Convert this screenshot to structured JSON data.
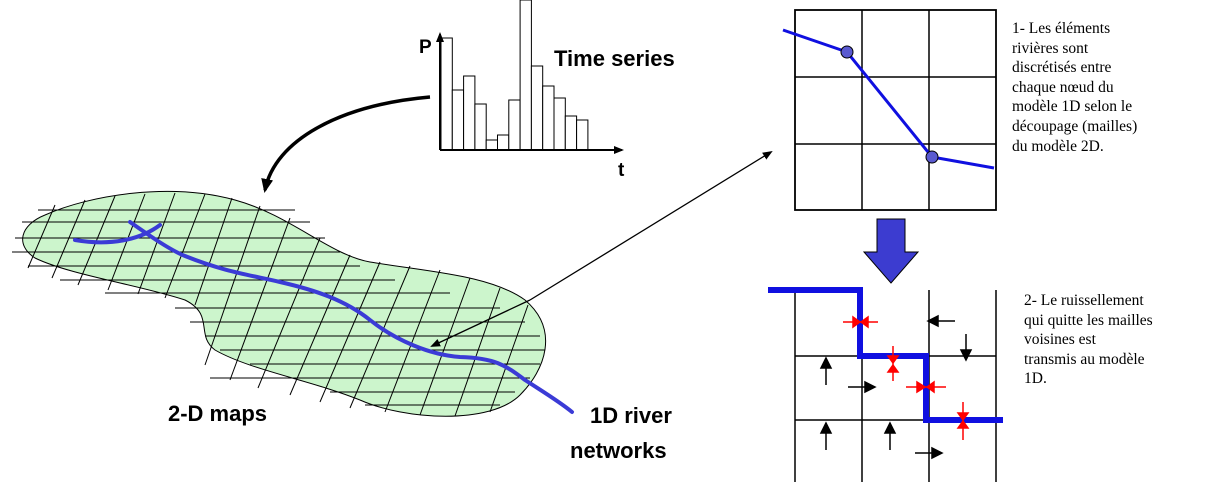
{
  "labels": {
    "time_series": "Time series",
    "axis_p": "P",
    "axis_t": "t",
    "maps": "2-D maps",
    "river_line1": "1D river",
    "river_line2": "networks"
  },
  "histogram": {
    "values": [
      112,
      60,
      74,
      46,
      10,
      15,
      50,
      150,
      84,
      64,
      52,
      34,
      30
    ]
  },
  "notes": {
    "step1": [
      "1- Les éléments",
      "rivières sont",
      "discrétisés entre",
      "chaque nœud du",
      "modèle 1D selon le",
      "découpage (mailles)",
      "du modèle 2D."
    ],
    "step2": [
      "2- Le ruissellement",
      "qui quitte les mailles",
      "voisines est",
      "transmis au modèle",
      "1D."
    ]
  },
  "colors": {
    "river": "#1010e0",
    "terrain_fill": "#ccf5cc",
    "flux_arrow": "#ff0000",
    "node": "#5a5ad0",
    "step_arrow": "#3c3cd0"
  }
}
